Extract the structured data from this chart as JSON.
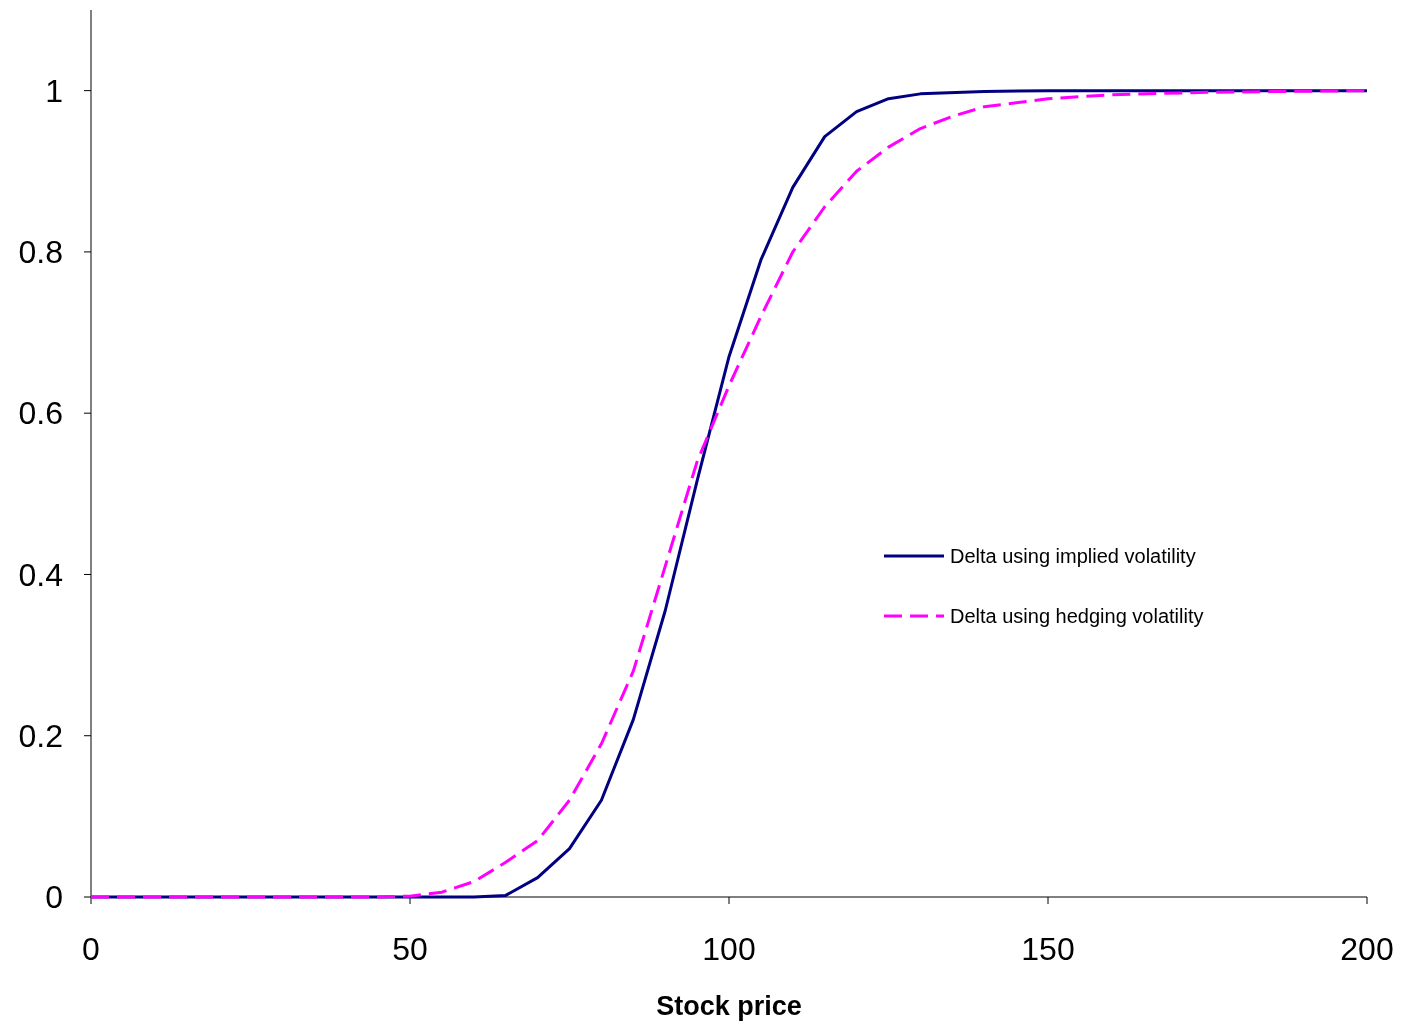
{
  "chart_data": {
    "type": "line",
    "xlabel": "Stock price",
    "xlim": [
      0,
      200
    ],
    "xticks": [
      0,
      50,
      100,
      150,
      200
    ],
    "ylim": [
      0,
      1.1
    ],
    "yticks": [
      0,
      0.2,
      0.4,
      0.6,
      0.8,
      1
    ],
    "grid": false,
    "legend": "right",
    "marker": "none",
    "series": [
      {
        "name": "Delta using implied volatility",
        "color": "#000080",
        "line_style": "solid",
        "x": [
          0,
          50,
          60,
          65,
          70,
          75,
          80,
          85,
          90,
          95,
          100,
          105,
          110,
          115,
          120,
          125,
          130,
          140,
          150,
          160,
          200
        ],
        "values": [
          0,
          0,
          0,
          0.002,
          0.024,
          0.06,
          0.12,
          0.22,
          0.355,
          0.516,
          0.67,
          0.79,
          0.88,
          0.943,
          0.974,
          0.99,
          0.996,
          0.999,
          1,
          1,
          1
        ]
      },
      {
        "name": "Delta using hedging volatility",
        "color": "#ff00ff",
        "line_style": "dashed",
        "x": [
          0,
          45,
          50,
          55,
          60,
          65,
          70,
          75,
          80,
          85,
          90,
          95,
          100,
          105,
          110,
          115,
          120,
          125,
          130,
          135,
          140,
          150,
          160,
          175,
          200
        ],
        "values": [
          0,
          0,
          0.001,
          0.006,
          0.019,
          0.043,
          0.07,
          0.12,
          0.19,
          0.28,
          0.41,
          0.54,
          0.634,
          0.72,
          0.8,
          0.856,
          0.9,
          0.93,
          0.953,
          0.968,
          0.98,
          0.99,
          0.995,
          0.998,
          1
        ]
      }
    ]
  }
}
